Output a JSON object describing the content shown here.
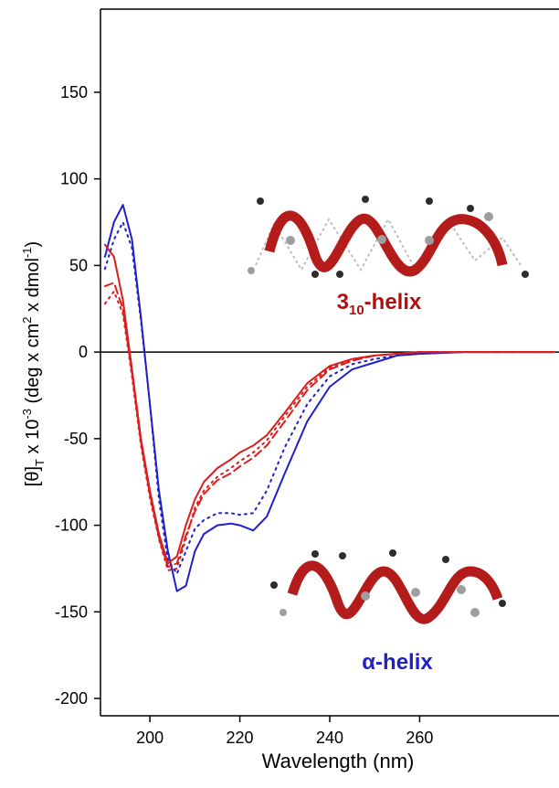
{
  "chart_data": {
    "type": "line",
    "x_label": "Wavelength (nm)",
    "y_label_parts": [
      "[θ]",
      "T",
      " x 10",
      "-3",
      " (deg x cm",
      "2",
      " x dmol",
      "-1",
      ")"
    ],
    "annotations": {
      "helix310": [
        "3",
        "10",
        "-helix"
      ],
      "alpha": "α-helix"
    },
    "xlim": [
      189,
      291
    ],
    "ylim": [
      -210,
      198
    ],
    "xticks": [
      200,
      220,
      240,
      260
    ],
    "yticks": [
      150,
      100,
      50,
      0,
      -50,
      -100,
      -150,
      -200
    ],
    "reference_line": 0,
    "x": [
      190,
      192,
      194,
      196,
      198,
      200,
      202,
      204,
      206,
      208,
      210,
      212,
      215,
      218,
      220,
      223,
      226,
      230,
      235,
      240,
      245,
      250,
      255,
      260,
      270,
      280,
      290
    ],
    "series": [
      {
        "color": "#1f1fcc",
        "dash": "solid",
        "values": [
          55,
          75,
          85,
          65,
          20,
          -30,
          -80,
          -115,
          -138,
          -135,
          -115,
          -105,
          -100,
          -99,
          -100,
          -103,
          -95,
          -70,
          -40,
          -20,
          -10,
          -6,
          -2,
          -1,
          0,
          0,
          0
        ]
      },
      {
        "color": "#1f1fcc",
        "dash": "dotted",
        "values": [
          48,
          65,
          75,
          60,
          18,
          -30,
          -85,
          -120,
          -128,
          -115,
          -102,
          -97,
          -93,
          -93,
          -94,
          -93,
          -80,
          -55,
          -30,
          -14,
          -7,
          -4,
          -2,
          -1,
          0,
          0,
          0
        ]
      },
      {
        "color": "#dd1c1c",
        "dash": "solid",
        "values": [
          62,
          55,
          30,
          -10,
          -50,
          -80,
          -105,
          -122,
          -118,
          -100,
          -85,
          -75,
          -67,
          -62,
          -58,
          -54,
          -48,
          -35,
          -18,
          -8,
          -4,
          -2,
          -1,
          0,
          0,
          0,
          0
        ]
      },
      {
        "color": "#dd1c1c",
        "dash": "dashed",
        "values": [
          38,
          40,
          25,
          -12,
          -52,
          -82,
          -107,
          -124,
          -122,
          -106,
          -92,
          -82,
          -74,
          -70,
          -66,
          -61,
          -54,
          -40,
          -22,
          -10,
          -5,
          -2,
          -1,
          0,
          0,
          0,
          0
        ]
      },
      {
        "color": "#dd1c1c",
        "dash": "dotted",
        "values": [
          28,
          35,
          22,
          -14,
          -54,
          -84,
          -108,
          -126,
          -125,
          -108,
          -90,
          -80,
          -72,
          -67,
          -63,
          -58,
          -51,
          -37,
          -20,
          -9,
          -4,
          -2,
          -1,
          0,
          0,
          0,
          0
        ]
      }
    ]
  }
}
